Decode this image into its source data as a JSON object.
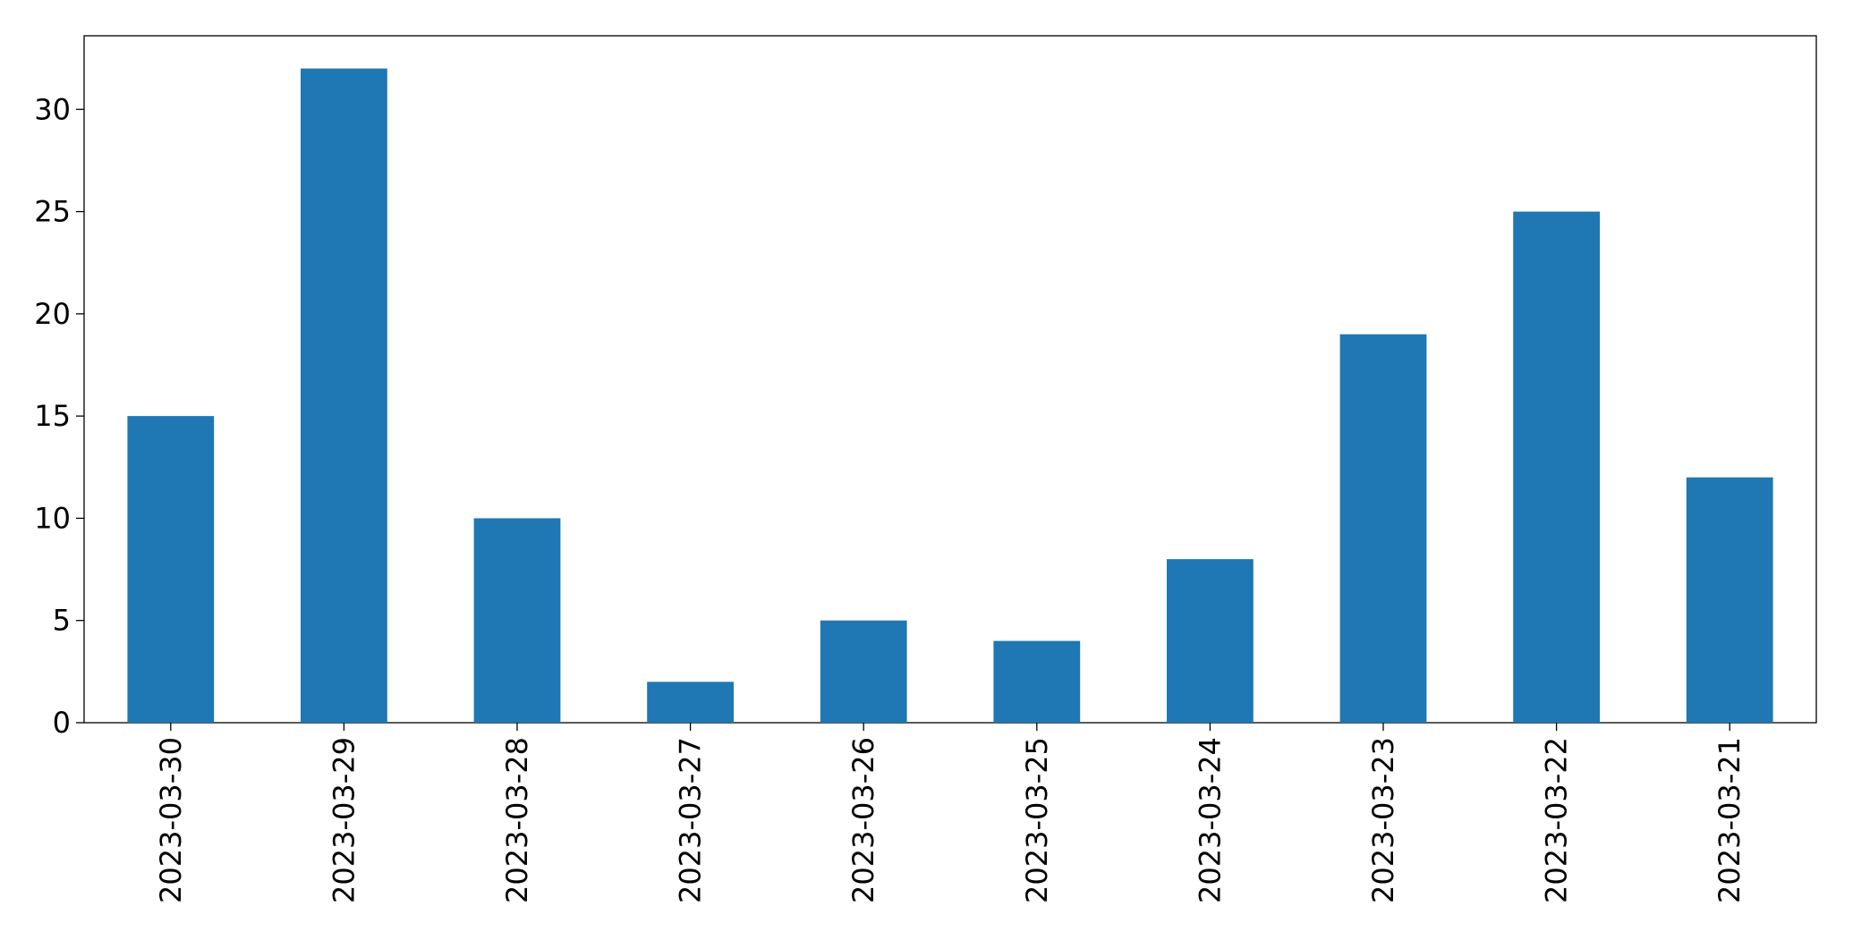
{
  "chart_data": {
    "type": "bar",
    "categories": [
      "2023-03-30",
      "2023-03-29",
      "2023-03-28",
      "2023-03-27",
      "2023-03-26",
      "2023-03-25",
      "2023-03-24",
      "2023-03-23",
      "2023-03-22",
      "2023-03-21"
    ],
    "values": [
      15,
      32,
      10,
      2,
      5,
      4,
      8,
      19,
      25,
      12
    ],
    "color": "#1f77b4",
    "ylim": [
      0,
      33.6
    ],
    "yticks": [
      0,
      5,
      10,
      15,
      20,
      25,
      30
    ],
    "grid": false
  }
}
